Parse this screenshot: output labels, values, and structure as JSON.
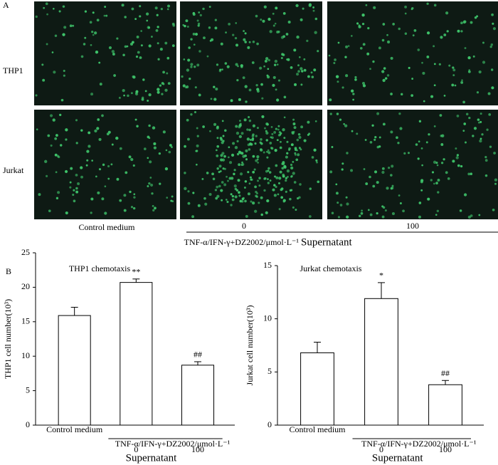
{
  "panel_a": {
    "label": "A",
    "rows": [
      "THP1",
      "Jurkat"
    ],
    "columns": [
      "Control medium",
      "0",
      "100"
    ],
    "group_label": "TNF-α/IFN-γ+DZ2002/μmol·L⁻¹",
    "group_suffix": "Supernatant"
  },
  "panel_b": {
    "label": "B"
  },
  "chart_data": [
    {
      "type": "bar",
      "title": "THP1 chemotaxis",
      "y_label": "THP1 cell number(10³)",
      "categories": [
        "Control medium",
        "0",
        "100"
      ],
      "values": [
        15.9,
        20.7,
        8.7
      ],
      "errors": [
        1.2,
        0.5,
        0.5
      ],
      "annotations": [
        null,
        "**",
        "##"
      ],
      "color": "#ffffff",
      "group_label": "TNF-α/IFN-γ+DZ2002/μmol·L⁻¹",
      "group_suffix": "Supernatant",
      "ylim": [
        0,
        25
      ],
      "yticks": [
        0,
        5,
        10,
        15,
        20,
        25
      ]
    },
    {
      "type": "bar",
      "title": "Jurkat chemotaxis",
      "y_label": "Jurkat cell number(10³)",
      "categories": [
        "Control medium",
        "0",
        "100"
      ],
      "values": [
        6.8,
        11.9,
        3.8
      ],
      "errors": [
        1.0,
        1.5,
        0.4
      ],
      "annotations": [
        null,
        "*",
        "##"
      ],
      "color": "#ffffff",
      "group_label": "TNF-α/IFN-γ+DZ2002/μmol·L⁻¹",
      "group_suffix": "Supernatant",
      "ylim": [
        0,
        15
      ],
      "yticks": [
        0,
        5,
        10,
        15
      ]
    }
  ]
}
